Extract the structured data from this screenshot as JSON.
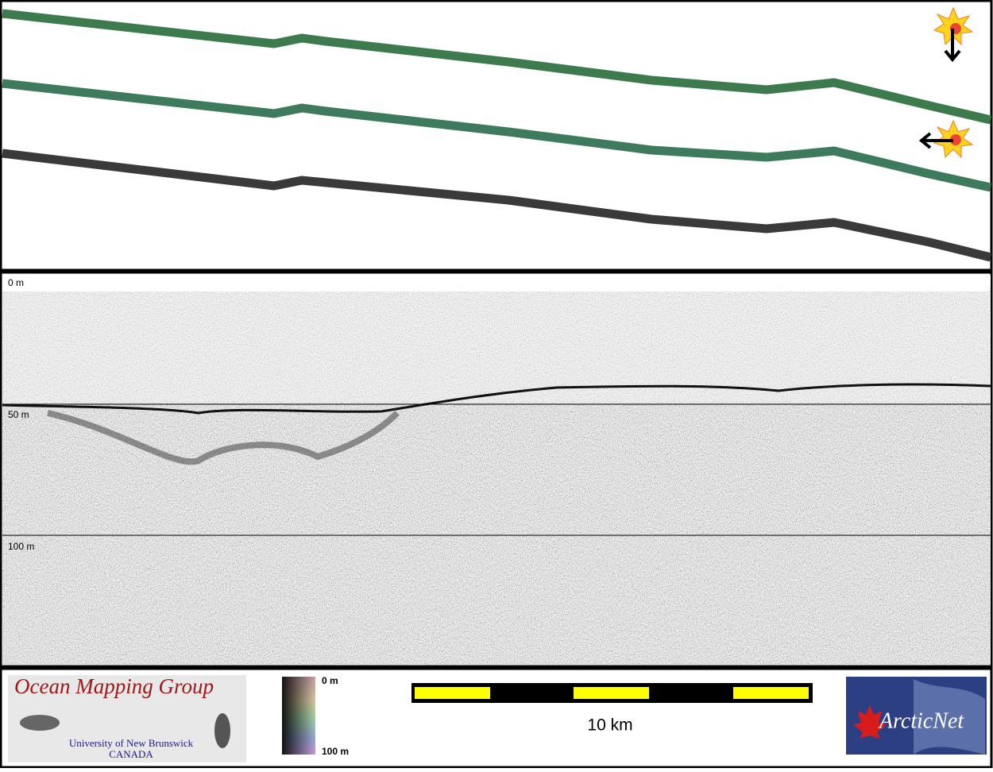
{
  "profile": {
    "depth_labels": [
      "0 m",
      "50 m",
      "100 m"
    ]
  },
  "footer": {
    "logo_title": "Ocean Mapping Group",
    "logo_line1": "University of New Brunswick",
    "logo_line2": "CANADA",
    "colorbar_top": "0 m",
    "colorbar_bottom": "100 m",
    "scale_label": "10 km",
    "partner_logo": "ArcticNet"
  }
}
